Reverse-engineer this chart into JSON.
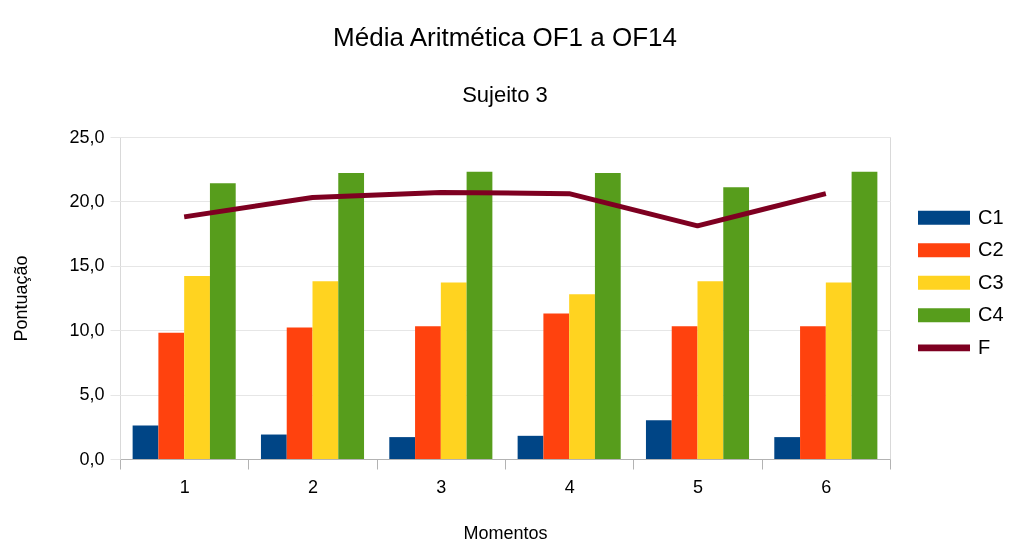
{
  "chart_data": {
    "type": "bar",
    "title": "Média Aritmética OF1 a OF14",
    "subtitle": "Sujeito 3",
    "xlabel": "Momentos",
    "ylabel": "Pontuação",
    "categories": [
      "1",
      "2",
      "3",
      "4",
      "5",
      "6"
    ],
    "series": [
      {
        "name": "C1",
        "color": "#004586",
        "values": [
          2.6,
          1.9,
          1.7,
          1.8,
          3.0,
          1.7
        ]
      },
      {
        "name": "C2",
        "color": "#ff420e",
        "values": [
          9.8,
          10.2,
          10.3,
          11.3,
          10.3,
          10.3
        ]
      },
      {
        "name": "C3",
        "color": "#ffd320",
        "values": [
          14.2,
          13.8,
          13.7,
          12.8,
          13.8,
          13.7
        ]
      },
      {
        "name": "C4",
        "color": "#579d1c",
        "values": [
          21.4,
          22.2,
          22.3,
          22.2,
          21.1,
          22.3
        ]
      },
      {
        "name": "F",
        "type": "line",
        "color": "#7e0021",
        "values": [
          18.8,
          20.3,
          20.7,
          20.6,
          18.1,
          20.6
        ]
      }
    ],
    "ylim": [
      0,
      25
    ],
    "yticks": [
      {
        "value": 0,
        "label": "0,0"
      },
      {
        "value": 5,
        "label": "5,0"
      },
      {
        "value": 10,
        "label": "10,0"
      },
      {
        "value": 15,
        "label": "15,0"
      },
      {
        "value": 20,
        "label": "20,0"
      },
      {
        "value": 25,
        "label": "25,0"
      }
    ],
    "grid": "y",
    "legend": "right"
  }
}
